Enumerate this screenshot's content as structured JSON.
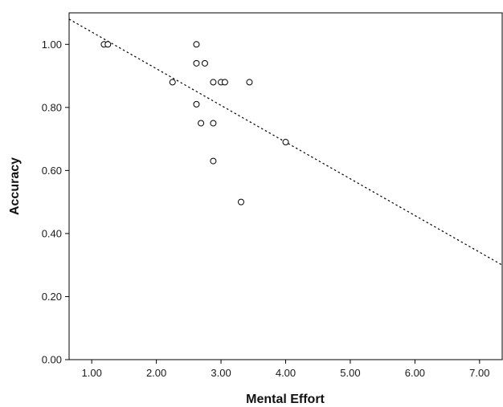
{
  "chart_data": {
    "type": "scatter",
    "xlabel": "Mental Effort",
    "ylabel": "Accuracy",
    "xlim": [
      0.65,
      7.35
    ],
    "ylim": [
      0.0,
      1.1
    ],
    "x_ticks": [
      "1.00",
      "2.00",
      "3.00",
      "4.00",
      "5.00",
      "6.00",
      "7.00"
    ],
    "y_ticks": [
      "0.00",
      "0.20",
      "0.40",
      "0.60",
      "0.80",
      "1.00"
    ],
    "x_tick_values": [
      1,
      2,
      3,
      4,
      5,
      6,
      7
    ],
    "y_tick_values": [
      0,
      0.2,
      0.4,
      0.6,
      0.8,
      1.0
    ],
    "grid": false,
    "points": [
      {
        "x": 1.19,
        "y": 1.0
      },
      {
        "x": 1.25,
        "y": 1.0
      },
      {
        "x": 2.25,
        "y": 0.88
      },
      {
        "x": 2.62,
        "y": 1.0
      },
      {
        "x": 2.62,
        "y": 0.94
      },
      {
        "x": 2.75,
        "y": 0.94
      },
      {
        "x": 2.62,
        "y": 0.81
      },
      {
        "x": 2.69,
        "y": 0.75
      },
      {
        "x": 2.88,
        "y": 0.88
      },
      {
        "x": 3.0,
        "y": 0.88
      },
      {
        "x": 3.06,
        "y": 0.88
      },
      {
        "x": 2.88,
        "y": 0.75
      },
      {
        "x": 2.88,
        "y": 0.63
      },
      {
        "x": 3.44,
        "y": 0.88
      },
      {
        "x": 3.31,
        "y": 0.5
      },
      {
        "x": 4.0,
        "y": 0.69
      }
    ],
    "trendline": {
      "style": "dotted",
      "from": {
        "x": 0.65,
        "y": 1.08
      },
      "to": {
        "x": 7.35,
        "y": 0.3
      }
    },
    "colors": {
      "axis": "#000000",
      "marker_stroke": "#000000",
      "marker_fill": "#ffffff",
      "trendline": "#000000"
    }
  }
}
